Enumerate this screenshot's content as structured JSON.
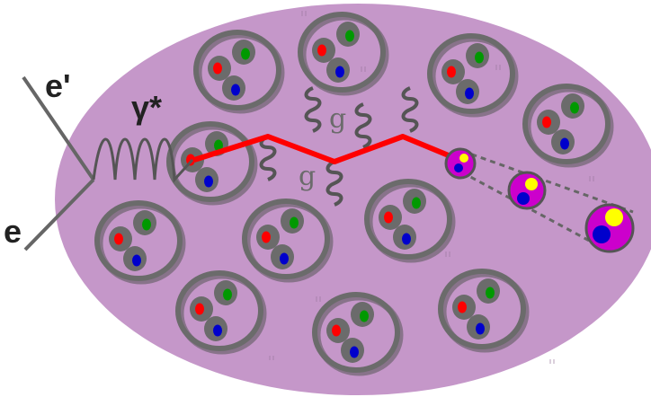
{
  "labels": {
    "electron_in": "e",
    "electron_out": "e'",
    "photon": "γ*",
    "gluon_upper": "g",
    "gluon_lower": "g"
  },
  "colors": {
    "nucleus_fill": "#c597c9",
    "nucleon_ring": "#6b6b6b",
    "quark_red": "#ff0000",
    "quark_green": "#009900",
    "quark_blue": "#0000cc",
    "struck_path": "#ff0000",
    "hadron_fill": "#cc00cc",
    "hadron_quark_yellow": "#ffff00",
    "line_gray": "#666666"
  },
  "icons": {
    "nucleon": "nucleon-three-quark-icon",
    "hadron": "hadron-two-quark-icon"
  }
}
